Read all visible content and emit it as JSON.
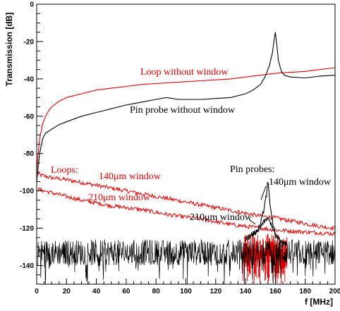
{
  "chart_data": {
    "type": "line",
    "xlabel": "f [MHz]",
    "ylabel": "Transmission [dB]",
    "xlim": [
      0,
      200
    ],
    "ylim": [
      -150,
      0
    ],
    "xticks": [
      0,
      20,
      40,
      60,
      80,
      100,
      120,
      140,
      160,
      180,
      200
    ],
    "yticks": [
      0,
      -20,
      -40,
      -60,
      -80,
      -100,
      -120,
      -140
    ],
    "grid": false,
    "legend": "none",
    "series": [
      {
        "color": "#e00000",
        "x": [
          0,
          1,
          2,
          4,
          6,
          8,
          10,
          15,
          20,
          30,
          40,
          50,
          60,
          70,
          80,
          90,
          100,
          110,
          120,
          130,
          140,
          150,
          160,
          170,
          180,
          190,
          200
        ],
        "values": [
          -90,
          -80,
          -72,
          -64,
          -60,
          -57,
          -55,
          -52,
          -50,
          -48,
          -46,
          -45,
          -44,
          -43,
          -42.5,
          -42,
          -41.5,
          -41,
          -40.5,
          -40,
          -39,
          -38,
          -37,
          -36.5,
          -36,
          -35,
          -34
        ]
      },
      {
        "color": "#000000",
        "x": [
          0,
          2,
          4,
          6,
          8,
          10,
          15,
          20,
          30,
          40,
          50,
          60,
          70,
          80,
          87,
          95,
          110,
          120,
          130,
          140,
          145,
          150,
          153,
          156,
          158,
          159,
          160,
          161,
          162,
          164,
          166,
          170,
          180,
          190,
          200
        ],
        "values": [
          -95,
          -80,
          -72,
          -69,
          -68,
          -67,
          -64.5,
          -63,
          -60,
          -58,
          -56,
          -54,
          -52.5,
          -51,
          -50,
          -51,
          -51,
          -50.5,
          -50,
          -48,
          -46,
          -43,
          -39,
          -33,
          -26,
          -20,
          -15,
          -22,
          -30,
          -36,
          -38,
          -39,
          -39.5,
          -38.5,
          -38
        ]
      },
      {
        "color": "#e00000",
        "x": [
          0,
          5,
          10,
          20,
          30,
          40,
          50,
          60,
          70,
          80,
          90,
          100,
          110,
          120,
          130,
          140,
          150,
          160,
          170,
          180,
          190,
          200
        ],
        "values": [
          -91,
          -92,
          -93,
          -94,
          -95.5,
          -97,
          -98.5,
          -100,
          -101.5,
          -103,
          -104.5,
          -106,
          -107.5,
          -109,
          -110.5,
          -112,
          -113.5,
          -114.5,
          -116,
          -117.5,
          -119,
          -120
        ]
      },
      {
        "color": "#e00000",
        "x": [
          0,
          5,
          10,
          20,
          30,
          40,
          50,
          60,
          70,
          80,
          90,
          100,
          110,
          120,
          130,
          140,
          150,
          160,
          170,
          180,
          190,
          200
        ],
        "values": [
          -99,
          -100,
          -101,
          -103,
          -105,
          -106.5,
          -108,
          -109,
          -110,
          -111.5,
          -113,
          -114,
          -115,
          -116.5,
          -118,
          -119,
          -120,
          -121,
          -121.5,
          -122,
          -122.5,
          -123
        ]
      },
      {
        "color": "#000000",
        "x": [
          0,
          10,
          20,
          40,
          60,
          80,
          100,
          120,
          140,
          145,
          148,
          150,
          152,
          154,
          155,
          156,
          158,
          160,
          165,
          170,
          180,
          200
        ],
        "values": [
          -130,
          -129.5,
          -129,
          -128.5,
          -128,
          -128,
          -127.5,
          -127,
          -125,
          -123,
          -121,
          -118,
          -111,
          -102,
          -95,
          -104,
          -116,
          -124,
          -128,
          -129,
          -129.5,
          -130
        ]
      },
      {
        "color": "#000000",
        "x": [
          0,
          10,
          20,
          40,
          60,
          80,
          100,
          120,
          140,
          145,
          148,
          150,
          152,
          154,
          155,
          156,
          158,
          160,
          165,
          170,
          180,
          200
        ],
        "values": [
          -131,
          -130.5,
          -130,
          -129.5,
          -129,
          -129,
          -128.5,
          -128,
          -126,
          -124,
          -122,
          -119,
          -117,
          -115.5,
          -115,
          -116,
          -119,
          -124,
          -128,
          -129.5,
          -130,
          -131
        ]
      }
    ],
    "annotations": [
      {
        "text": "Loop without window",
        "color": "#e00000"
      },
      {
        "text": "Pin probe without window",
        "color": "#000000"
      },
      {
        "text": "Loops:",
        "color": "#e00000"
      },
      {
        "text": "140μm window",
        "color": "#e00000"
      },
      {
        "text": "210μm window",
        "color": "#e00000"
      },
      {
        "text": "Pin probes:",
        "color": "#000000"
      },
      {
        "text": "140μm window",
        "color": "#000000"
      },
      {
        "text": "210μm window",
        "color": "#000000"
      }
    ]
  }
}
